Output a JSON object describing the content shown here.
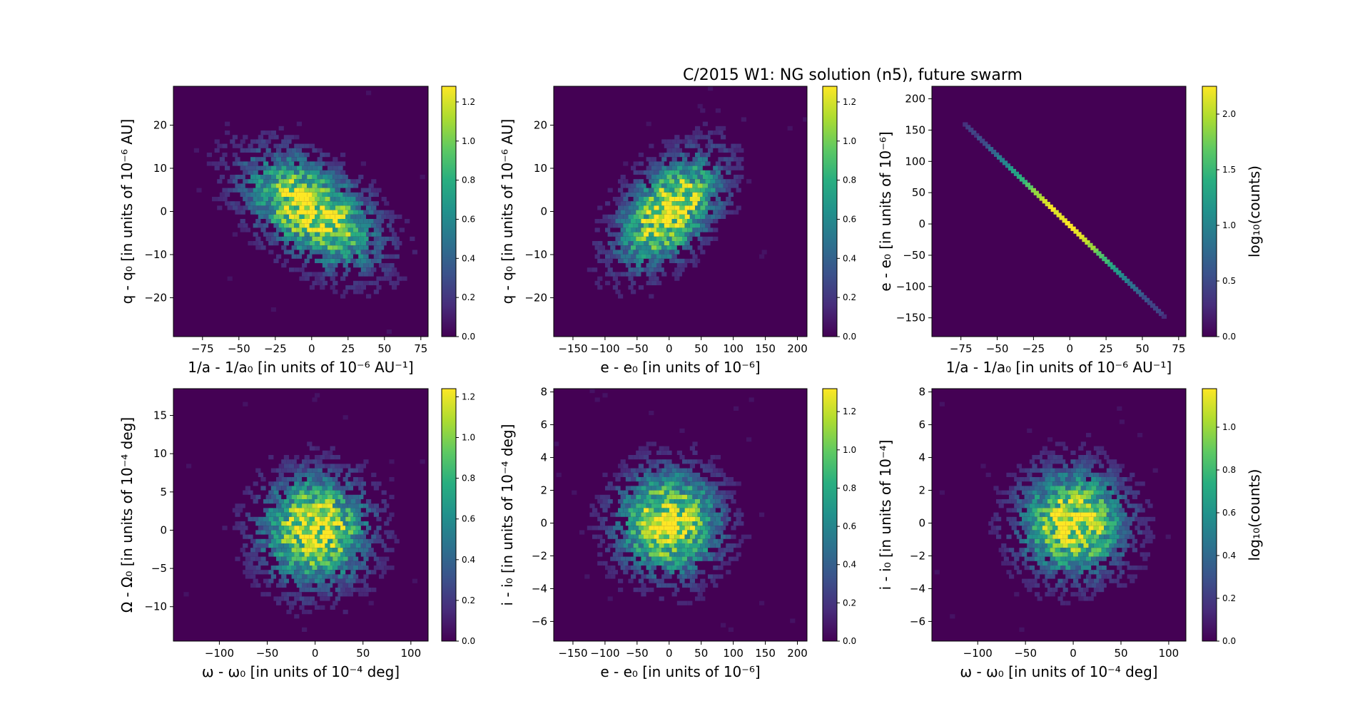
{
  "figure": {
    "title": "C/2015 W1: NG solution (n5),  future swarm"
  },
  "chart_data": [
    {
      "type": "heatmap",
      "panel": "top-left",
      "xlabel": "1/a - 1/a₀ [in units of 10⁻⁶ AU⁻¹]",
      "ylabel": "q - q₀ [in units of 10⁻⁶ AU]",
      "xlim": [
        -95,
        80
      ],
      "ylim": [
        -29,
        29
      ],
      "xticks": [
        -75,
        -50,
        -25,
        0,
        25,
        50,
        75
      ],
      "yticks": [
        -20,
        -10,
        0,
        10,
        20
      ],
      "distribution": {
        "cx": 0,
        "cy": 0,
        "sx": 28,
        "sy": 8,
        "rho": -0.5
      },
      "colorbar": {
        "label": "",
        "range": [
          0,
          1.28
        ],
        "ticks": [
          "0.0",
          "0.2",
          "0.4",
          "0.6",
          "0.8",
          "1.0",
          "1.2"
        ]
      }
    },
    {
      "type": "heatmap",
      "panel": "top-middle",
      "xlabel": "e - e₀ [in units of 10⁻⁶]",
      "ylabel": "q - q₀ [in units of 10⁻⁶ AU]",
      "xlim": [
        -180,
        215
      ],
      "ylim": [
        -29,
        29
      ],
      "xticks": [
        -150,
        -100,
        -50,
        0,
        50,
        100,
        150,
        200
      ],
      "yticks": [
        -20,
        -10,
        0,
        10,
        20
      ],
      "distribution": {
        "cx": 0,
        "cy": 0,
        "sx": 50,
        "sy": 8,
        "rho": 0.5
      },
      "colorbar": {
        "label": "",
        "range": [
          0,
          1.28
        ],
        "ticks": [
          "0.0",
          "0.2",
          "0.4",
          "0.6",
          "0.8",
          "1.0",
          "1.2"
        ]
      }
    },
    {
      "type": "heatmap",
      "panel": "top-right",
      "xlabel": "1/a - 1/a₀ [in units of 10⁻⁶ AU⁻¹]",
      "ylabel": "e - e₀ [in units of 10⁻⁶]",
      "xlim": [
        -95,
        80
      ],
      "ylim": [
        -180,
        220
      ],
      "xticks": [
        -75,
        -50,
        -25,
        0,
        25,
        50,
        75
      ],
      "yticks": [
        -150,
        -100,
        -50,
        0,
        50,
        100,
        150,
        200
      ],
      "line": {
        "x": [
          -72,
          65
        ],
        "y": [
          159,
          -148
        ]
      },
      "colorbar": {
        "label": "log₁₀(counts)",
        "range": [
          0,
          2.25
        ],
        "ticks": [
          "0.0",
          "0.5",
          "1.0",
          "1.5",
          "2.0"
        ]
      }
    },
    {
      "type": "heatmap",
      "panel": "bottom-left",
      "xlabel": "ω - ω₀ [in units of 10⁻⁴ deg]",
      "ylabel": "Ω - Ω₀ [in units of 10⁻⁴ deg]",
      "xlim": [
        -148,
        118
      ],
      "ylim": [
        -14.5,
        18.5
      ],
      "xticks": [
        -100,
        -50,
        0,
        50,
        100
      ],
      "yticks": [
        -10,
        -5,
        0,
        5,
        10,
        15
      ],
      "distribution": {
        "cx": 0,
        "cy": 0,
        "sx": 35,
        "sy": 4.5,
        "rho": 0
      },
      "colorbar": {
        "label": "",
        "range": [
          0,
          1.24
        ],
        "ticks": [
          "0.0",
          "0.2",
          "0.4",
          "0.6",
          "0.8",
          "1.0",
          "1.2"
        ]
      }
    },
    {
      "type": "heatmap",
      "panel": "bottom-middle",
      "xlabel": "e - e₀ [in units of 10⁻⁶]",
      "ylabel": "i - i₀ [in units of 10⁻⁴ deg]",
      "xlim": [
        -180,
        215
      ],
      "ylim": [
        -7.2,
        8.2
      ],
      "xticks": [
        -150,
        -100,
        -50,
        0,
        50,
        100,
        150,
        200
      ],
      "yticks": [
        -6,
        -4,
        -2,
        0,
        2,
        4,
        6,
        8
      ],
      "distribution": {
        "cx": 0,
        "cy": 0,
        "sx": 50,
        "sy": 2,
        "rho": 0
      },
      "colorbar": {
        "label": "",
        "range": [
          0,
          1.32
        ],
        "ticks": [
          "0.0",
          "0.2",
          "0.4",
          "0.6",
          "0.8",
          "1.0",
          "1.2"
        ]
      }
    },
    {
      "type": "heatmap",
      "panel": "bottom-right",
      "xlabel": "ω - ω₀ [in units of 10⁻⁴ deg]",
      "ylabel": "i - i₀ [in units of 10⁻⁴]",
      "xlim": [
        -148,
        118
      ],
      "ylim": [
        -7.2,
        8.2
      ],
      "xticks": [
        -100,
        -50,
        0,
        50,
        100
      ],
      "yticks": [
        -6,
        -4,
        -2,
        0,
        2,
        4,
        6,
        8
      ],
      "distribution": {
        "cx": 0,
        "cy": 0,
        "sx": 35,
        "sy": 2,
        "rho": 0
      },
      "colorbar": {
        "label": "log₁₀(counts)",
        "range": [
          0,
          1.18
        ],
        "ticks": [
          "0.0",
          "0.2",
          "0.4",
          "0.6",
          "0.8",
          "1.0"
        ]
      }
    }
  ]
}
